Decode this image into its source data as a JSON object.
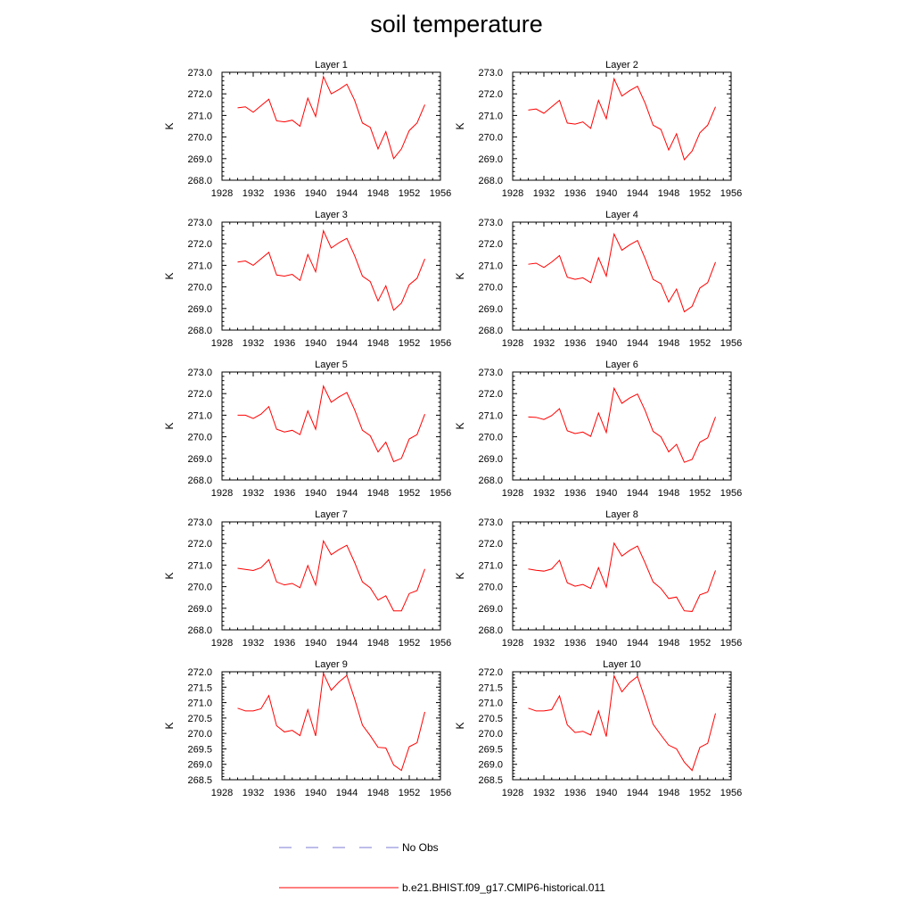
{
  "page": {
    "title": "soil temperature"
  },
  "legend": {
    "entries": [
      {
        "label": "No Obs",
        "color": "#7b7bd6",
        "style": "dashed"
      },
      {
        "label": "b.e21.BHIST.f09_g17.CMIP6-historical.011",
        "color": "#ff0000",
        "style": "solid"
      }
    ]
  },
  "chart_data": [
    {
      "type": "line",
      "title": "Layer 1",
      "xlabel": "",
      "ylabel": "K",
      "xlim": [
        1928,
        1956
      ],
      "ylim": [
        268.0,
        273.0
      ],
      "xticks": [
        "1928",
        "1932",
        "1936",
        "1940",
        "1944",
        "1948",
        "1952",
        "1956"
      ],
      "yticks": [
        "268.0",
        "269.0",
        "270.0",
        "271.0",
        "272.0",
        "273.0"
      ],
      "grid": false,
      "series": [
        {
          "color": "#ff0000",
          "x": [
            1930,
            1931,
            1932,
            1933,
            1934,
            1935,
            1936,
            1937,
            1938,
            1939,
            1940,
            1941,
            1942,
            1943,
            1944,
            1945,
            1946,
            1947,
            1948,
            1949,
            1950,
            1951,
            1952,
            1953,
            1954
          ],
          "y": [
            271.35,
            271.4,
            271.15,
            271.45,
            271.75,
            270.75,
            270.7,
            270.78,
            270.5,
            271.8,
            270.95,
            272.8,
            272.0,
            272.2,
            272.45,
            271.7,
            270.65,
            270.45,
            269.45,
            270.25,
            269.0,
            269.45,
            270.3,
            270.65,
            271.5
          ]
        }
      ]
    },
    {
      "type": "line",
      "title": "Layer 2",
      "xlabel": "",
      "ylabel": "K",
      "xlim": [
        1928,
        1956
      ],
      "ylim": [
        268.0,
        273.0
      ],
      "xticks": [
        "1928",
        "1932",
        "1936",
        "1940",
        "1944",
        "1948",
        "1952",
        "1956"
      ],
      "yticks": [
        "268.0",
        "269.0",
        "270.0",
        "271.0",
        "272.0",
        "273.0"
      ],
      "grid": false,
      "series": [
        {
          "color": "#ff0000",
          "x": [
            1930,
            1931,
            1932,
            1933,
            1934,
            1935,
            1936,
            1937,
            1938,
            1939,
            1940,
            1941,
            1942,
            1943,
            1944,
            1945,
            1946,
            1947,
            1948,
            1949,
            1950,
            1951,
            1952,
            1953,
            1954
          ],
          "y": [
            271.25,
            271.3,
            271.1,
            271.4,
            271.7,
            270.65,
            270.6,
            270.7,
            270.4,
            271.7,
            270.85,
            272.7,
            271.9,
            272.15,
            272.35,
            271.55,
            270.55,
            270.35,
            269.4,
            270.15,
            268.95,
            269.35,
            270.2,
            270.55,
            271.4
          ]
        }
      ]
    },
    {
      "type": "line",
      "title": "Layer 3",
      "xlabel": "",
      "ylabel": "K",
      "xlim": [
        1928,
        1956
      ],
      "ylim": [
        268.0,
        273.0
      ],
      "xticks": [
        "1928",
        "1932",
        "1936",
        "1940",
        "1944",
        "1948",
        "1952",
        "1956"
      ],
      "yticks": [
        "268.0",
        "269.0",
        "270.0",
        "271.0",
        "272.0",
        "273.0"
      ],
      "grid": false,
      "series": [
        {
          "color": "#ff0000",
          "x": [
            1930,
            1931,
            1932,
            1933,
            1934,
            1935,
            1936,
            1937,
            1938,
            1939,
            1940,
            1941,
            1942,
            1943,
            1944,
            1945,
            1946,
            1947,
            1948,
            1949,
            1950,
            1951,
            1952,
            1953,
            1954
          ],
          "y": [
            271.15,
            271.2,
            271.0,
            271.3,
            271.6,
            270.55,
            270.5,
            270.58,
            270.3,
            271.5,
            270.7,
            272.6,
            271.8,
            272.05,
            272.25,
            271.45,
            270.5,
            270.25,
            269.35,
            270.05,
            268.92,
            269.25,
            270.1,
            270.4,
            271.3
          ]
        }
      ]
    },
    {
      "type": "line",
      "title": "Layer 4",
      "xlabel": "",
      "ylabel": "K",
      "xlim": [
        1928,
        1956
      ],
      "ylim": [
        268.0,
        273.0
      ],
      "xticks": [
        "1928",
        "1932",
        "1936",
        "1940",
        "1944",
        "1948",
        "1952",
        "1956"
      ],
      "yticks": [
        "268.0",
        "269.0",
        "270.0",
        "271.0",
        "272.0",
        "273.0"
      ],
      "grid": false,
      "series": [
        {
          "color": "#ff0000",
          "x": [
            1930,
            1931,
            1932,
            1933,
            1934,
            1935,
            1936,
            1937,
            1938,
            1939,
            1940,
            1941,
            1942,
            1943,
            1944,
            1945,
            1946,
            1947,
            1948,
            1949,
            1950,
            1951,
            1952,
            1953,
            1954
          ],
          "y": [
            271.05,
            271.1,
            270.9,
            271.15,
            271.45,
            270.45,
            270.35,
            270.42,
            270.2,
            271.35,
            270.5,
            272.45,
            271.7,
            271.95,
            272.15,
            271.3,
            270.35,
            270.15,
            269.3,
            269.9,
            268.85,
            269.1,
            269.95,
            270.2,
            271.15
          ]
        }
      ]
    },
    {
      "type": "line",
      "title": "Layer 5",
      "xlabel": "",
      "ylabel": "K",
      "xlim": [
        1928,
        1956
      ],
      "ylim": [
        268.0,
        273.0
      ],
      "xticks": [
        "1928",
        "1932",
        "1936",
        "1940",
        "1944",
        "1948",
        "1952",
        "1956"
      ],
      "yticks": [
        "268.0",
        "269.0",
        "270.0",
        "271.0",
        "272.0",
        "273.0"
      ],
      "grid": false,
      "series": [
        {
          "color": "#ff0000",
          "x": [
            1930,
            1931,
            1932,
            1933,
            1934,
            1935,
            1936,
            1937,
            1938,
            1939,
            1940,
            1941,
            1942,
            1943,
            1944,
            1945,
            1946,
            1947,
            1948,
            1949,
            1950,
            1951,
            1952,
            1953,
            1954
          ],
          "y": [
            271.0,
            271.0,
            270.85,
            271.05,
            271.4,
            270.35,
            270.22,
            270.3,
            270.1,
            271.2,
            270.35,
            272.35,
            271.6,
            271.85,
            272.05,
            271.25,
            270.3,
            270.05,
            269.3,
            269.75,
            268.85,
            269.0,
            269.9,
            270.1,
            271.05
          ]
        }
      ]
    },
    {
      "type": "line",
      "title": "Layer 6",
      "xlabel": "",
      "ylabel": "K",
      "xlim": [
        1928,
        1956
      ],
      "ylim": [
        268.0,
        273.0
      ],
      "xticks": [
        "1928",
        "1932",
        "1936",
        "1940",
        "1944",
        "1948",
        "1952",
        "1956"
      ],
      "yticks": [
        "268.0",
        "269.0",
        "270.0",
        "271.0",
        "272.0",
        "273.0"
      ],
      "grid": false,
      "series": [
        {
          "color": "#ff0000",
          "x": [
            1930,
            1931,
            1932,
            1933,
            1934,
            1935,
            1936,
            1937,
            1938,
            1939,
            1940,
            1941,
            1942,
            1943,
            1944,
            1945,
            1946,
            1947,
            1948,
            1949,
            1950,
            1951,
            1952,
            1953,
            1954
          ],
          "y": [
            270.92,
            270.9,
            270.8,
            270.98,
            271.3,
            270.28,
            270.15,
            270.22,
            270.02,
            271.1,
            270.2,
            272.25,
            271.55,
            271.8,
            271.98,
            271.2,
            270.25,
            270.0,
            269.3,
            269.65,
            268.82,
            268.95,
            269.75,
            269.95,
            270.92
          ]
        }
      ]
    },
    {
      "type": "line",
      "title": "Layer 7",
      "xlabel": "",
      "ylabel": "K",
      "xlim": [
        1928,
        1956
      ],
      "ylim": [
        268.0,
        273.0
      ],
      "xticks": [
        "1928",
        "1932",
        "1936",
        "1940",
        "1944",
        "1948",
        "1952",
        "1956"
      ],
      "yticks": [
        "268.0",
        "269.0",
        "270.0",
        "271.0",
        "272.0",
        "273.0"
      ],
      "grid": false,
      "series": [
        {
          "color": "#ff0000",
          "x": [
            1930,
            1931,
            1932,
            1933,
            1934,
            1935,
            1936,
            1937,
            1938,
            1939,
            1940,
            1941,
            1942,
            1943,
            1944,
            1945,
            1946,
            1947,
            1948,
            1949,
            1950,
            1951,
            1952,
            1953,
            1954
          ],
          "y": [
            270.85,
            270.8,
            270.75,
            270.88,
            271.25,
            270.22,
            270.08,
            270.15,
            269.95,
            270.98,
            270.08,
            272.12,
            271.48,
            271.72,
            271.92,
            271.12,
            270.22,
            269.95,
            269.38,
            269.58,
            268.88,
            268.88,
            269.68,
            269.82,
            270.82
          ]
        }
      ]
    },
    {
      "type": "line",
      "title": "Layer 8",
      "xlabel": "",
      "ylabel": "K",
      "xlim": [
        1928,
        1956
      ],
      "ylim": [
        268.0,
        273.0
      ],
      "xticks": [
        "1928",
        "1932",
        "1936",
        "1940",
        "1944",
        "1948",
        "1952",
        "1956"
      ],
      "yticks": [
        "268.0",
        "269.0",
        "270.0",
        "271.0",
        "272.0",
        "273.0"
      ],
      "grid": false,
      "series": [
        {
          "color": "#ff0000",
          "x": [
            1930,
            1931,
            1932,
            1933,
            1934,
            1935,
            1936,
            1937,
            1938,
            1939,
            1940,
            1941,
            1942,
            1943,
            1944,
            1945,
            1946,
            1947,
            1948,
            1949,
            1950,
            1951,
            1952,
            1953,
            1954
          ],
          "y": [
            270.82,
            270.76,
            270.72,
            270.82,
            271.22,
            270.18,
            270.02,
            270.1,
            269.92,
            270.88,
            269.98,
            272.02,
            271.42,
            271.68,
            271.88,
            271.08,
            270.22,
            269.92,
            269.45,
            269.52,
            268.88,
            268.85,
            269.62,
            269.75,
            270.75
          ]
        }
      ]
    },
    {
      "type": "line",
      "title": "Layer 9",
      "xlabel": "",
      "ylabel": "K",
      "xlim": [
        1928,
        1956
      ],
      "ylim": [
        268.5,
        272.0
      ],
      "xticks": [
        "1928",
        "1932",
        "1936",
        "1940",
        "1944",
        "1948",
        "1952",
        "1956"
      ],
      "yticks": [
        "268.5",
        "269.0",
        "269.5",
        "270.0",
        "270.5",
        "271.0",
        "271.5",
        "272.0"
      ],
      "grid": false,
      "series": [
        {
          "color": "#ff0000",
          "x": [
            1930,
            1931,
            1932,
            1933,
            1934,
            1935,
            1936,
            1937,
            1938,
            1939,
            1940,
            1941,
            1942,
            1943,
            1944,
            1945,
            1946,
            1947,
            1948,
            1949,
            1950,
            1951,
            1952,
            1953,
            1954
          ],
          "y": [
            270.82,
            270.73,
            270.73,
            270.8,
            271.23,
            270.25,
            270.05,
            270.1,
            269.93,
            270.77,
            269.92,
            271.95,
            271.4,
            271.67,
            271.88,
            271.12,
            270.27,
            269.93,
            269.55,
            269.53,
            268.98,
            268.8,
            269.57,
            269.7,
            270.7
          ]
        }
      ]
    },
    {
      "type": "line",
      "title": "Layer 10",
      "xlabel": "",
      "ylabel": "K",
      "xlim": [
        1928,
        1956
      ],
      "ylim": [
        268.5,
        272.0
      ],
      "xticks": [
        "1928",
        "1932",
        "1936",
        "1940",
        "1944",
        "1948",
        "1952",
        "1956"
      ],
      "yticks": [
        "268.5",
        "269.0",
        "269.5",
        "270.0",
        "270.5",
        "271.0",
        "271.5",
        "272.0"
      ],
      "grid": false,
      "series": [
        {
          "color": "#ff0000",
          "x": [
            1930,
            1931,
            1932,
            1933,
            1934,
            1935,
            1936,
            1937,
            1938,
            1939,
            1940,
            1941,
            1942,
            1943,
            1944,
            1945,
            1946,
            1947,
            1948,
            1949,
            1950,
            1951,
            1952,
            1953,
            1954
          ],
          "y": [
            270.82,
            270.73,
            270.73,
            270.77,
            271.22,
            270.28,
            270.03,
            270.07,
            269.95,
            270.73,
            269.9,
            271.87,
            271.35,
            271.65,
            271.85,
            271.1,
            270.3,
            269.95,
            269.62,
            269.5,
            269.07,
            268.8,
            269.55,
            269.68,
            270.65
          ]
        }
      ]
    }
  ]
}
